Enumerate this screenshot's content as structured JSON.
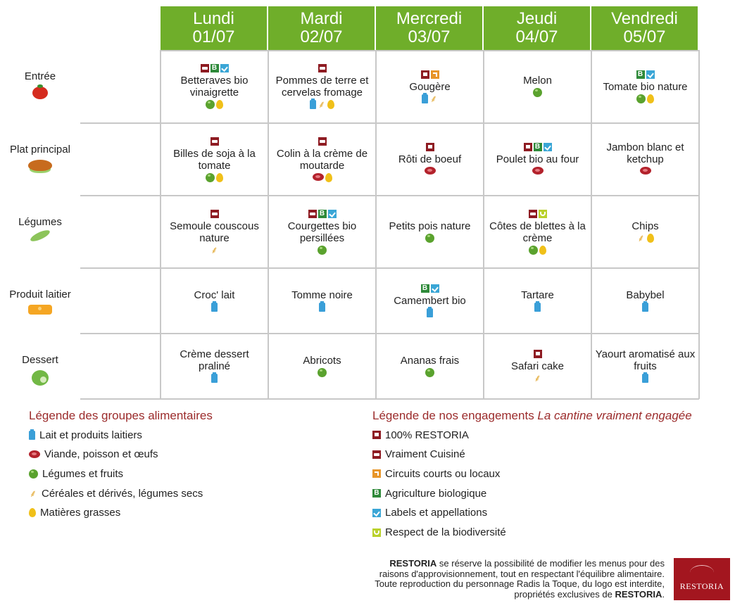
{
  "days": [
    {
      "name": "Lundi",
      "date": "01/07"
    },
    {
      "name": "Mardi",
      "date": "02/07"
    },
    {
      "name": "Mercredi",
      "date": "03/07"
    },
    {
      "name": "Jeudi",
      "date": "04/07"
    },
    {
      "name": "Vendredi",
      "date": "05/07"
    }
  ],
  "categories": [
    {
      "label": "Entrée",
      "icon": "tomato-icon"
    },
    {
      "label": "Plat principal",
      "icon": "roast-turkey-icon"
    },
    {
      "label": "Légumes",
      "icon": "pea-pod-icon"
    },
    {
      "label": "Produit laitier",
      "icon": "cheese-icon"
    },
    {
      "label": "Dessert",
      "icon": "apple-icon"
    }
  ],
  "menu": [
    [
      {
        "dish": "Betteraves bio vinaigrette",
        "badges": [
          "cuisine",
          "bio",
          "label"
        ],
        "groups": [
          "veg",
          "fat"
        ]
      },
      {
        "dish": "Pommes de terre et cervelas fromage",
        "badges": [
          "cuisine"
        ],
        "groups": [
          "milk",
          "cereal",
          "fat"
        ]
      },
      {
        "dish": "Gougère",
        "badges": [
          "resto",
          "local"
        ],
        "groups": [
          "milk",
          "cereal"
        ]
      },
      {
        "dish": "Melon",
        "badges": [],
        "groups": [
          "veg"
        ]
      },
      {
        "dish": "Tomate bio nature",
        "badges": [
          "bio",
          "label"
        ],
        "groups": [
          "veg",
          "fat"
        ]
      }
    ],
    [
      {
        "dish": "Billes de soja à la tomate",
        "badges": [
          "cuisine"
        ],
        "groups": [
          "veg",
          "fat"
        ]
      },
      {
        "dish": "Colin à la crème de moutarde",
        "badges": [
          "cuisine"
        ],
        "groups": [
          "meat",
          "fat"
        ]
      },
      {
        "dish": "Rôti de boeuf",
        "badges": [
          "resto"
        ],
        "groups": [
          "meat"
        ]
      },
      {
        "dish": "Poulet bio au four",
        "badges": [
          "resto",
          "bio",
          "label"
        ],
        "groups": [
          "meat"
        ]
      },
      {
        "dish": "Jambon blanc et ketchup",
        "badges": [],
        "groups": [
          "meat"
        ]
      }
    ],
    [
      {
        "dish": "Semoule couscous nature",
        "badges": [
          "cuisine"
        ],
        "groups": [
          "cereal"
        ]
      },
      {
        "dish": "Courgettes bio persillées",
        "badges": [
          "cuisine",
          "bio",
          "label"
        ],
        "groups": [
          "veg"
        ]
      },
      {
        "dish": "Petits pois nature",
        "badges": [],
        "groups": [
          "veg"
        ]
      },
      {
        "dish": "Côtes de blettes à la crème",
        "badges": [
          "cuisine",
          "biodiv"
        ],
        "groups": [
          "veg",
          "fat"
        ]
      },
      {
        "dish": "Chips",
        "badges": [],
        "groups": [
          "cereal",
          "fat"
        ]
      }
    ],
    [
      {
        "dish": "Croc' lait",
        "badges": [],
        "groups": [
          "milk"
        ]
      },
      {
        "dish": "Tomme noire",
        "badges": [],
        "groups": [
          "milk"
        ]
      },
      {
        "dish": "Camembert bio",
        "badges": [
          "bio",
          "label"
        ],
        "groups": [
          "milk"
        ]
      },
      {
        "dish": "Tartare",
        "badges": [],
        "groups": [
          "milk"
        ]
      },
      {
        "dish": "Babybel",
        "badges": [],
        "groups": [
          "milk"
        ]
      }
    ],
    [
      {
        "dish": "Crème dessert praliné",
        "badges": [],
        "groups": [
          "milk"
        ]
      },
      {
        "dish": "Abricots",
        "badges": [],
        "groups": [
          "veg"
        ]
      },
      {
        "dish": "Ananas frais",
        "badges": [],
        "groups": [
          "veg"
        ]
      },
      {
        "dish": "Safari cake",
        "badges": [
          "resto"
        ],
        "groups": [
          "cereal"
        ]
      },
      {
        "dish": "Yaourt aromatisé aux fruits",
        "badges": [],
        "groups": [
          "milk"
        ]
      }
    ]
  ],
  "food_legend": {
    "title": "Légende des groupes alimentaires",
    "items": [
      {
        "key": "milk",
        "label": "Lait et produits laitiers"
      },
      {
        "key": "meat",
        "label": "Viande, poisson et œufs"
      },
      {
        "key": "veg",
        "label": "Légumes et fruits"
      },
      {
        "key": "cereal",
        "label": "Céréales et dérivés, légumes secs"
      },
      {
        "key": "fat",
        "label": "Matières grasses"
      }
    ]
  },
  "commit_legend": {
    "title": "Légende de nos engagements ",
    "title_italic": "La cantine vraiment engagée",
    "items": [
      {
        "key": "resto",
        "label": "100% RESTORIA"
      },
      {
        "key": "cuisine",
        "label": "Vraiment Cuisiné"
      },
      {
        "key": "local",
        "label": "Circuits courts ou locaux"
      },
      {
        "key": "bio",
        "label": "Agriculture biologique"
      },
      {
        "key": "label",
        "label": "Labels et appellations"
      },
      {
        "key": "biodiv",
        "label": "Respect de la biodiversité"
      }
    ]
  },
  "notice": {
    "brand": "RESTORIA",
    "line1_rest": " se réserve la possibilité de modifier les menus pour des",
    "line2": "raisons d'approvisionnement, tout en respectant l'équilibre alimentaire.",
    "line3": "Toute reproduction du personnage Radis la Toque, du logo est interdite,",
    "line4_start": "propriétés exclusives de ",
    "line4_brand": "RESTORIA",
    "line4_end": "."
  },
  "logo": {
    "text": "RESTORIA"
  },
  "colors": {
    "header_green": "#6fae2a",
    "legend_title": "#9b2b2b",
    "brand_red": "#a3161f"
  }
}
